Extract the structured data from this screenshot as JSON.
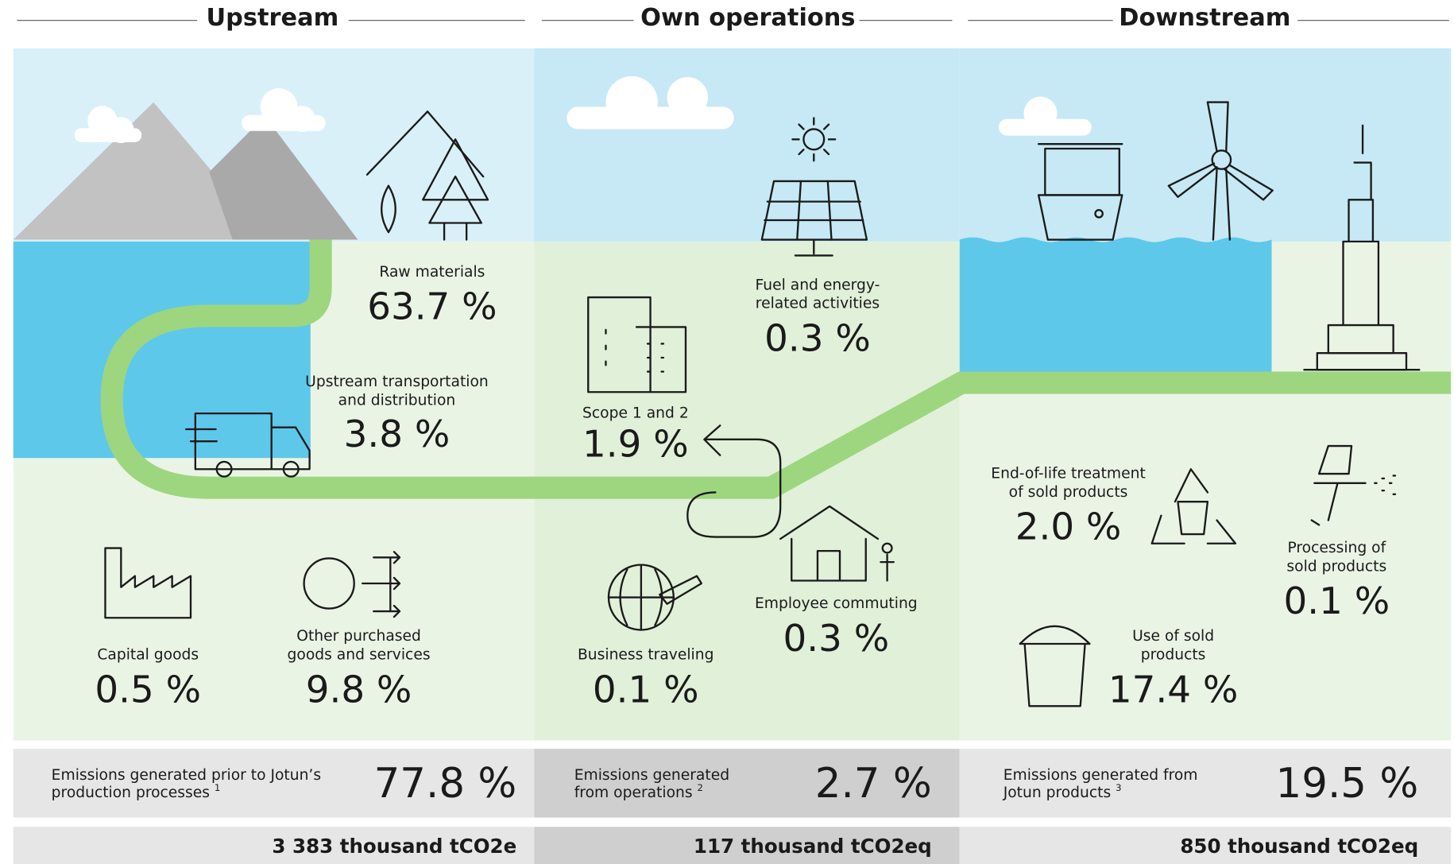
{
  "headers": [
    "Upstream",
    "Own operations",
    "Downstream"
  ],
  "items": [
    {
      "label": [
        "Raw materials"
      ],
      "value": "63.7 %"
    },
    {
      "label": [
        "Upstream transportation",
        "and distribution"
      ],
      "value": "3.8 %"
    },
    {
      "label": [
        "Capital goods"
      ],
      "value": "0.5 %"
    },
    {
      "label": [
        "Other purchased",
        "goods and services"
      ],
      "value": "9.8 %"
    },
    {
      "label": [
        "Fuel and energy-",
        "related activities"
      ],
      "value": "0.3 %"
    },
    {
      "label": [
        "Scope 1 and 2"
      ],
      "value": "1.9 %"
    },
    {
      "label": [
        "Employee commuting"
      ],
      "value": "0.3 %"
    },
    {
      "label": [
        "Business traveling"
      ],
      "value": "0.1 %"
    },
    {
      "label": [
        "End-of-life treatment",
        "of sold products"
      ],
      "value": "2.0 %"
    },
    {
      "label": [
        "Processing of",
        "sold products"
      ],
      "value": "0.1 %"
    },
    {
      "label": [
        "Use of sold",
        "products"
      ],
      "value": "17.4 %"
    }
  ],
  "summary": [
    {
      "label": [
        "Emissions generated prior to Jotun’s",
        "production processes"
      ],
      "note": "1",
      "value": "77.8 %",
      "total": "3 383 thousand tCO2e"
    },
    {
      "label": [
        "Emissions generated",
        "from operations"
      ],
      "note": "2",
      "value": "2.7 %",
      "total": "117 thousand tCO2eq"
    },
    {
      "label": [
        "Emissions generated from",
        "Jotun products"
      ],
      "note": "3",
      "value": "19.5 %",
      "total": "850 thousand tCO2eq"
    }
  ]
}
